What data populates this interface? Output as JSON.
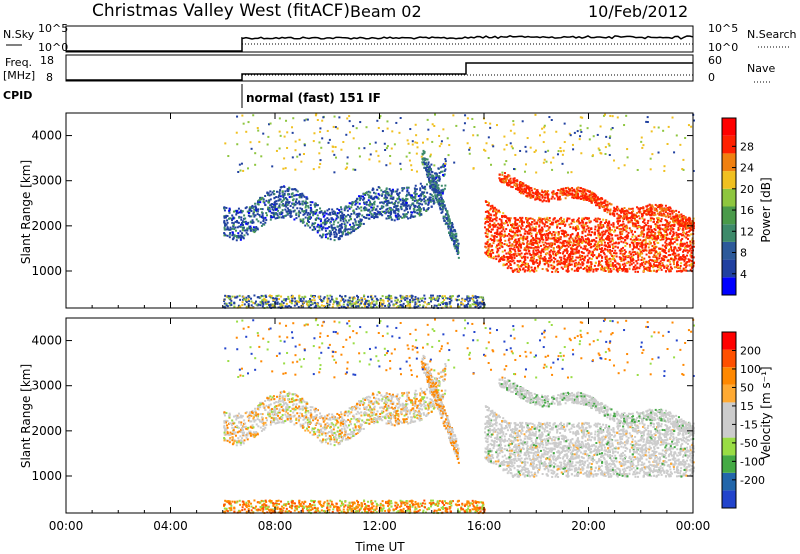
{
  "header": {
    "station": "Christmas Valley West (fitACF)",
    "beam": "Beam 02",
    "date": "10/Feb/2012"
  },
  "top_panels": {
    "nsky_label": "N.Sky",
    "nsky_ticks": [
      "10^5",
      "10^0"
    ],
    "nsearch_label": "N.Search",
    "nsearch_ticks": [
      "10^5",
      "10^0"
    ],
    "freq_label": "Freq.",
    "freq_unit": "[MHz]",
    "freq_ticks": [
      "18",
      "8"
    ],
    "nave_label": "Nave",
    "nave_ticks": [
      "60",
      "0"
    ],
    "cpid_label": "CPID",
    "cpid_text": "normal (fast) 151 IF"
  },
  "colors": {
    "power": [
      "#0000ff",
      "#2040a0",
      "#2d5a9a",
      "#3d8a6a",
      "#4a9a4a",
      "#8ec63f",
      "#f0c020",
      "#f08010",
      "#ff2000",
      "#ff0000"
    ],
    "velocity": [
      "#ff0000",
      "#ff5000",
      "#ff8800",
      "#ffaa33",
      "#cccccc",
      "#cccccc",
      "#99dd44",
      "#44aa44",
      "#2266aa",
      "#2244cc"
    ]
  },
  "chart_data": [
    {
      "type": "heatmap",
      "title": "Power",
      "ylabel": "Slant Range [km]",
      "xlabel": "Time UT",
      "x_ticks": [
        "00:00",
        "04:00",
        "08:00",
        "12:00",
        "16:00",
        "20:00",
        "00:00"
      ],
      "y_ticks": [
        "1000",
        "2000",
        "3000",
        "4000"
      ],
      "ylim": [
        180,
        4500
      ],
      "colorbar": {
        "label": "Power [dB]",
        "ticks": [
          "4",
          "8",
          "12",
          "16",
          "20",
          "24",
          "28"
        ],
        "range": [
          0,
          30
        ]
      }
    },
    {
      "type": "heatmap",
      "title": "Velocity",
      "ylabel": "Slant Range [km]",
      "xlabel": "Time UT",
      "x_ticks": [
        "00:00",
        "04:00",
        "08:00",
        "12:00",
        "16:00",
        "20:00",
        "00:00"
      ],
      "y_ticks": [
        "1000",
        "2000",
        "3000",
        "4000"
      ],
      "ylim": [
        180,
        4500
      ],
      "colorbar": {
        "label": "Velocity [m s⁻¹]",
        "ticks": [
          "200",
          "100",
          "50",
          "15",
          "-15",
          "-50",
          "-100",
          "-200"
        ]
      }
    }
  ],
  "axis_title": "Time UT"
}
